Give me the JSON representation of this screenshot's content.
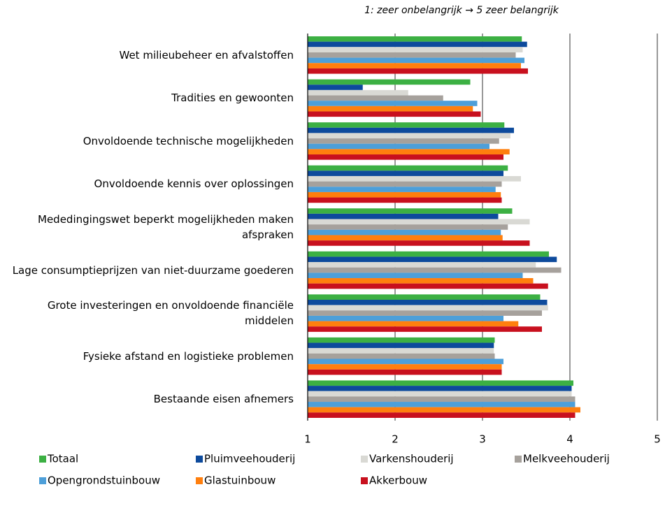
{
  "chart_data": {
    "type": "hbar",
    "subtitle": "1: zeer onbelangrijk → 5 zeer belangrijk",
    "categories": [
      "Wet milieubeheer en afvalstoffen",
      "Tradities en gewoonten",
      "Onvoldoende technische mogelijkheden",
      "Onvoldoende kennis over oplossingen",
      "Mededingingswet beperkt mogelijkheden maken afspraken",
      "Lage consumptieprijzen van niet-duurzame goederen",
      "Grote investeringen en onvoldoende financiële middelen",
      "Fysieke afstand en logistieke problemen",
      "Bestaande eisen afnemers"
    ],
    "series": [
      {
        "name": "Totaal",
        "color": "#3cb043",
        "values": [
          3.45,
          2.86,
          3.25,
          3.29,
          3.34,
          3.76,
          3.66,
          3.14,
          4.04
        ]
      },
      {
        "name": "Pluimveehouderij",
        "color": "#0d4a9c",
        "values": [
          3.51,
          1.63,
          3.36,
          3.24,
          3.18,
          3.85,
          3.74,
          3.13,
          4.02
        ]
      },
      {
        "name": "Varkenshouderij",
        "color": "#d9d9d4",
        "values": [
          3.46,
          2.15,
          3.32,
          3.44,
          3.54,
          3.61,
          3.75,
          3.13,
          4.02
        ]
      },
      {
        "name": "Melkveehouderij",
        "color": "#a6a19c",
        "values": [
          3.38,
          2.55,
          3.19,
          3.22,
          3.29,
          3.9,
          3.68,
          3.14,
          4.06
        ]
      },
      {
        "name": "Opengrondstuinbouw",
        "color": "#4d9fd9",
        "values": [
          3.48,
          2.94,
          3.08,
          3.15,
          3.21,
          3.46,
          3.24,
          3.24,
          4.06
        ]
      },
      {
        "name": "Glastuinbouw",
        "color": "#ff7f0e",
        "values": [
          3.44,
          2.89,
          3.31,
          3.21,
          3.23,
          3.58,
          3.41,
          3.22,
          4.12
        ]
      },
      {
        "name": "Akkerbouw",
        "color": "#c8101e",
        "values": [
          3.52,
          2.98,
          3.24,
          3.22,
          3.54,
          3.75,
          3.68,
          3.22,
          4.06
        ]
      }
    ],
    "xlim": [
      1,
      5
    ],
    "xticks": [
      1,
      2,
      3,
      4,
      5
    ],
    "grid": true
  }
}
